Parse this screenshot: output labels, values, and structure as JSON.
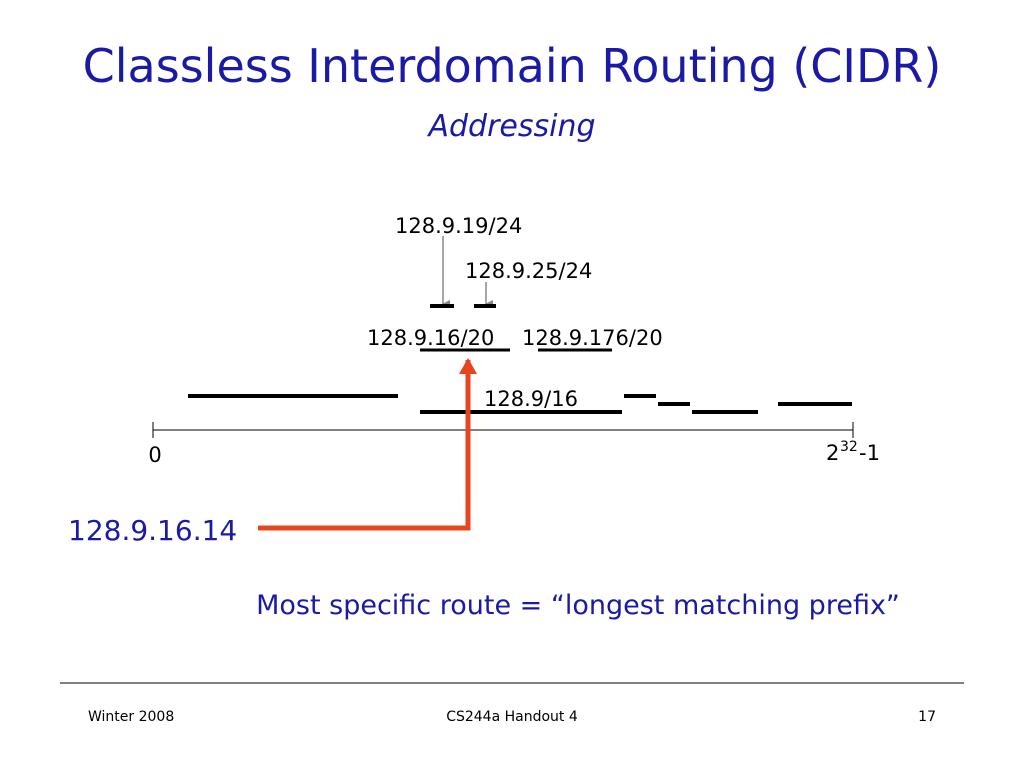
{
  "header": {
    "title": "Classless Interdomain Routing (CIDR)",
    "subtitle": "Addressing"
  },
  "diagram": {
    "prefixes": [
      "128.9.19/24",
      "128.9.25/24",
      "128.9.16/20",
      "128.9.176/20",
      "128.9/16"
    ],
    "axis": {
      "start": "0",
      "end_base": "2",
      "end_exponent": "32",
      "end_suffix": "-1"
    },
    "address": "128.9.16.14",
    "note": "Most specific route = “longest matching prefix”"
  },
  "footer": {
    "left": "Winter 2008",
    "center": "CS244a Handout 4",
    "page": "17"
  }
}
